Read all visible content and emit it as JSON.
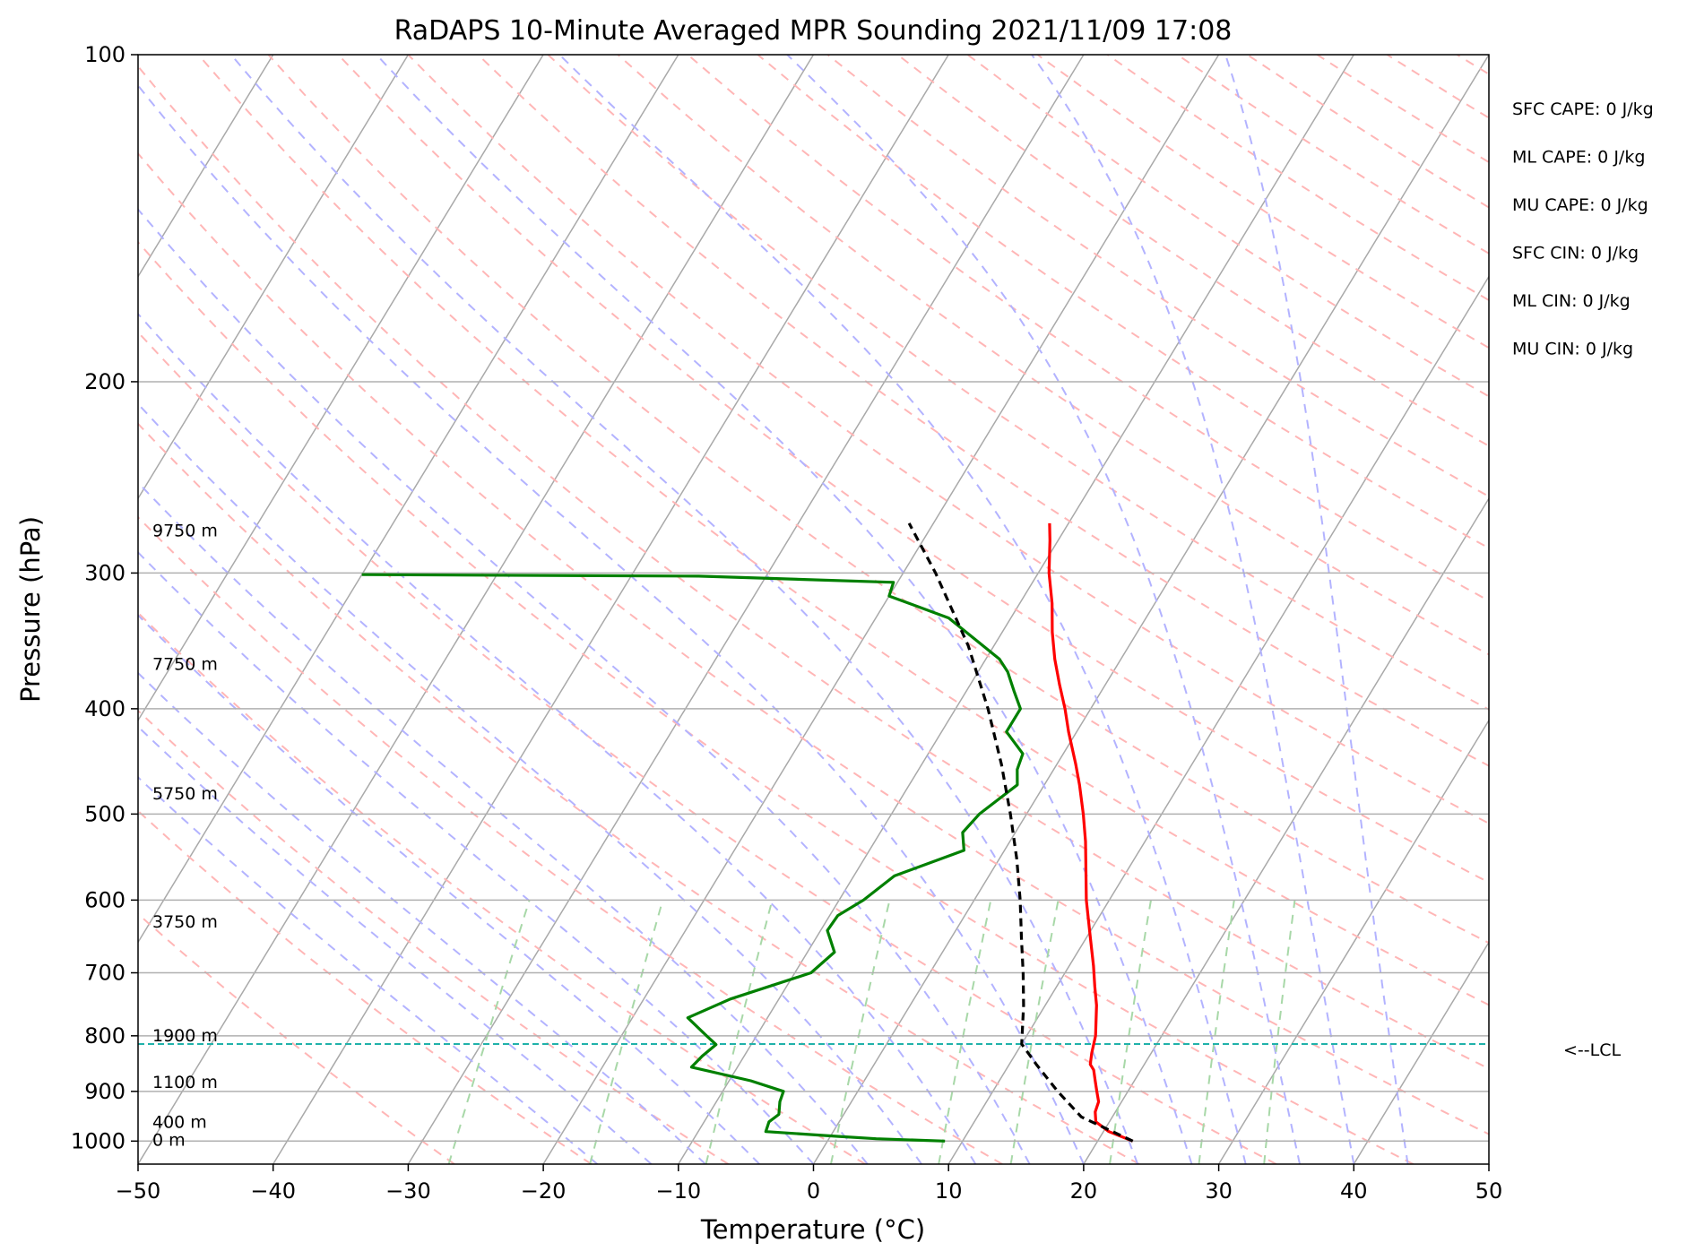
{
  "chart_data": {
    "type": "line",
    "subtype": "skew-T log-P sounding",
    "title": "RaDAPS 10-Minute Averaged MPR Sounding 2021/11/09 17:08",
    "xlabel": "Temperature (°C)",
    "ylabel": "Pressure (hPa)",
    "xlim": [
      -50,
      50
    ],
    "ylim": [
      1050,
      100
    ],
    "y_scale": "log",
    "x_ticks": [
      "−50",
      "−40",
      "−30",
      "−20",
      "−10",
      "0",
      "10",
      "20",
      "30",
      "40",
      "50"
    ],
    "y_ticks": [
      "100",
      "200",
      "300",
      "400",
      "500",
      "600",
      "700",
      "800",
      "900",
      "1000"
    ],
    "grid": true,
    "series": [
      {
        "color": "#ff0000",
        "points": [
          [
            1000,
            22.6
          ],
          [
            980,
            20.4
          ],
          [
            960,
            19.0
          ],
          [
            940,
            18.5
          ],
          [
            920,
            18.3
          ],
          [
            900,
            17.7
          ],
          [
            880,
            17.1
          ],
          [
            860,
            16.5
          ],
          [
            850,
            16.0
          ],
          [
            830,
            15.6
          ],
          [
            800,
            15.1
          ],
          [
            750,
            13.8
          ],
          [
            720,
            12.8
          ],
          [
            690,
            11.8
          ],
          [
            650,
            10.3
          ],
          [
            600,
            8.3
          ],
          [
            560,
            6.8
          ],
          [
            530,
            5.6
          ],
          [
            500,
            4.2
          ],
          [
            470,
            2.6
          ],
          [
            450,
            1.4
          ],
          [
            420,
            -0.6
          ],
          [
            400,
            -1.9
          ],
          [
            380,
            -3.4
          ],
          [
            360,
            -4.9
          ],
          [
            340,
            -6.3
          ],
          [
            320,
            -7.6
          ],
          [
            300,
            -9.2
          ],
          [
            280,
            -10.6
          ],
          [
            270,
            -11.4
          ]
        ]
      },
      {
        "color": "#008000",
        "points": [
          [
            1000,
            8.7
          ],
          [
            995,
            3.5
          ],
          [
            990,
            0.5
          ],
          [
            980,
            -5.0
          ],
          [
            960,
            -5.2
          ],
          [
            945,
            -4.8
          ],
          [
            920,
            -5.3
          ],
          [
            900,
            -5.5
          ],
          [
            880,
            -8.4
          ],
          [
            855,
            -13.4
          ],
          [
            835,
            -13.1
          ],
          [
            815,
            -12.6
          ],
          [
            800,
            -13.7
          ],
          [
            770,
            -15.9
          ],
          [
            740,
            -13.6
          ],
          [
            700,
            -8.8
          ],
          [
            670,
            -8.0
          ],
          [
            640,
            -9.5
          ],
          [
            620,
            -9.4
          ],
          [
            600,
            -8.2
          ],
          [
            570,
            -7.0
          ],
          [
            540,
            -3.0
          ],
          [
            520,
            -3.9
          ],
          [
            500,
            -3.5
          ],
          [
            470,
            -2.0
          ],
          [
            455,
            -2.7
          ],
          [
            440,
            -3.0
          ],
          [
            420,
            -5.2
          ],
          [
            400,
            -5.2
          ],
          [
            385,
            -6.5
          ],
          [
            370,
            -7.8
          ],
          [
            360,
            -9.0
          ],
          [
            330,
            -14.6
          ],
          [
            315,
            -20.0
          ],
          [
            306,
            -20.3
          ],
          [
            302,
            -35.0
          ],
          [
            301,
            -60.0
          ]
        ]
      },
      {
        "color": "#000000",
        "dashed": true,
        "points": [
          [
            1000,
            22.6
          ],
          [
            950,
            17.7
          ],
          [
            900,
            14.8
          ],
          [
            850,
            12.0
          ],
          [
            814,
            10.0
          ],
          [
            750,
            8.4
          ],
          [
            700,
            6.9
          ],
          [
            650,
            5.2
          ],
          [
            600,
            3.4
          ],
          [
            550,
            1.3
          ],
          [
            500,
            -1.2
          ],
          [
            450,
            -4.1
          ],
          [
            400,
            -7.6
          ],
          [
            350,
            -11.9
          ],
          [
            300,
            -17.6
          ],
          [
            270,
            -21.8
          ]
        ]
      }
    ],
    "lcl_pressure": 814,
    "lcl_label": "<--LCL",
    "height_labels": [
      {
        "text": "9750 m",
        "p": 275
      },
      {
        "text": "7750 m",
        "p": 365
      },
      {
        "text": "5750 m",
        "p": 480
      },
      {
        "text": "3750 m",
        "p": 630
      },
      {
        "text": "1900 m",
        "p": 802
      },
      {
        "text": "1100 m",
        "p": 885
      },
      {
        "text": "400 m",
        "p": 963
      },
      {
        "text": "0 m",
        "p": 1000
      }
    ],
    "indices": [
      "SFC CAPE: 0 J/kg",
      "ML CAPE: 0 J/kg",
      "MU CAPE: 0 J/kg",
      "SFC CIN: 0 J/kg",
      "ML CIN: 0 J/kg",
      "MU CIN: 0 J/kg"
    ],
    "background_lines": {
      "isotherms_color": "#a9a9a9",
      "dry_adiabats_color": "#ffb6b6",
      "moist_adiabats_color": "#b3b3ff",
      "mixing_ratio_color": "#a8d8a8",
      "lcl_color": "#20b2aa"
    }
  }
}
